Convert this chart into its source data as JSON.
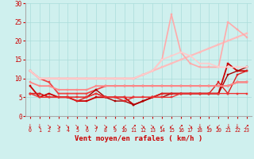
{
  "xlabel": "Vent moyen/en rafales ( km/h )",
  "xlim": [
    -0.5,
    23.5
  ],
  "ylim": [
    0,
    30
  ],
  "yticks": [
    0,
    5,
    10,
    15,
    20,
    25,
    30
  ],
  "xticks": [
    0,
    1,
    2,
    3,
    4,
    5,
    6,
    7,
    8,
    9,
    10,
    11,
    12,
    13,
    14,
    15,
    16,
    17,
    18,
    19,
    20,
    21,
    22,
    23
  ],
  "background_color": "#cff0ee",
  "grid_color": "#aaddda",
  "lines": [
    {
      "comment": "dark red - dips low around 11-12, rises sharply at 21",
      "x": [
        0,
        1,
        2,
        3,
        4,
        5,
        6,
        7,
        8,
        9,
        10,
        11,
        12,
        13,
        14,
        15,
        16,
        17,
        18,
        19,
        20,
        21,
        22,
        23
      ],
      "y": [
        8,
        5,
        6,
        5,
        5,
        4,
        4,
        5,
        5,
        5,
        5,
        3,
        4,
        5,
        6,
        6,
        6,
        6,
        6,
        6,
        6,
        14,
        12,
        12
      ],
      "color": "#cc0000",
      "lw": 1.3,
      "marker": "s",
      "ms": 2.0
    },
    {
      "comment": "medium red - starts ~12, drops to 6, stays ~6-8",
      "x": [
        0,
        1,
        2,
        3,
        4,
        5,
        6,
        7,
        8,
        9,
        10,
        11,
        12,
        13,
        14,
        15,
        16,
        17,
        18,
        19,
        20,
        21,
        22,
        23
      ],
      "y": [
        12,
        10,
        9,
        6,
        6,
        6,
        6,
        7,
        8,
        8,
        8,
        8,
        8,
        8,
        8,
        8,
        8,
        8,
        8,
        8,
        8,
        8,
        9,
        9
      ],
      "color": "#ee4444",
      "lw": 1.3,
      "marker": "s",
      "ms": 2.0
    },
    {
      "comment": "dark red thin - starts 6, dips to 3-4, rises at end",
      "x": [
        0,
        1,
        2,
        3,
        4,
        5,
        6,
        7,
        8,
        9,
        10,
        11,
        12,
        13,
        14,
        15,
        16,
        17,
        18,
        19,
        20,
        21,
        22,
        23
      ],
      "y": [
        6,
        6,
        5,
        5,
        5,
        5,
        5,
        7,
        5,
        4,
        4,
        3,
        4,
        5,
        5,
        6,
        6,
        6,
        6,
        6,
        6,
        11,
        12,
        13
      ],
      "color": "#aa0000",
      "lw": 1.0,
      "marker": "s",
      "ms": 1.8
    },
    {
      "comment": "medium dark red - flat ~5-6",
      "x": [
        0,
        1,
        2,
        3,
        4,
        5,
        6,
        7,
        8,
        9,
        10,
        11,
        12,
        13,
        14,
        15,
        16,
        17,
        18,
        19,
        20,
        21,
        22,
        23
      ],
      "y": [
        6,
        6,
        5,
        5,
        5,
        4,
        5,
        6,
        5,
        5,
        4,
        5,
        5,
        5,
        6,
        6,
        6,
        6,
        6,
        6,
        9,
        6,
        11,
        12
      ],
      "color": "#dd2222",
      "lw": 1.0,
      "marker": "s",
      "ms": 1.8
    },
    {
      "comment": "red flat ~5-6",
      "x": [
        0,
        1,
        2,
        3,
        4,
        5,
        6,
        7,
        8,
        9,
        10,
        11,
        12,
        13,
        14,
        15,
        16,
        17,
        18,
        19,
        20,
        21,
        22,
        23
      ],
      "y": [
        6,
        5,
        5,
        5,
        5,
        5,
        5,
        6,
        5,
        5,
        5,
        5,
        5,
        5,
        5,
        5,
        6,
        6,
        6,
        6,
        6,
        6,
        6,
        6
      ],
      "color": "#ee3333",
      "lw": 1.0,
      "marker": "s",
      "ms": 1.8
    },
    {
      "comment": "salmon - starts 9, flat ~8, slight rise",
      "x": [
        0,
        1,
        2,
        3,
        4,
        5,
        6,
        7,
        8,
        9,
        10,
        11,
        12,
        13,
        14,
        15,
        16,
        17,
        18,
        19,
        20,
        21,
        22,
        23
      ],
      "y": [
        9,
        8,
        8,
        7,
        7,
        7,
        7,
        8,
        8,
        8,
        8,
        8,
        8,
        8,
        8,
        8,
        8,
        8,
        8,
        8,
        8,
        8,
        9,
        9
      ],
      "color": "#ff8888",
      "lw": 1.3,
      "marker": "s",
      "ms": 2.0
    },
    {
      "comment": "light salmon - linear rise 12 to 21",
      "x": [
        0,
        1,
        2,
        3,
        4,
        5,
        6,
        7,
        8,
        9,
        10,
        11,
        12,
        13,
        14,
        15,
        16,
        17,
        18,
        19,
        20,
        21,
        22,
        23
      ],
      "y": [
        12,
        10,
        10,
        10,
        10,
        10,
        10,
        10,
        10,
        10,
        10,
        10,
        11,
        12,
        13,
        14,
        15,
        16,
        17,
        18,
        19,
        20,
        21,
        22
      ],
      "color": "#ffbbbb",
      "lw": 1.5,
      "marker": "s",
      "ms": 2.0
    },
    {
      "comment": "light pink - spike at 15=27, then 21=25",
      "x": [
        0,
        1,
        2,
        3,
        4,
        5,
        6,
        7,
        8,
        9,
        10,
        11,
        12,
        13,
        14,
        15,
        16,
        17,
        18,
        19,
        20,
        21,
        22,
        23
      ],
      "y": [
        12,
        10,
        10,
        10,
        10,
        10,
        10,
        10,
        10,
        10,
        10,
        10,
        11,
        12,
        15,
        27,
        17,
        14,
        13,
        13,
        13,
        25,
        23,
        21
      ],
      "color": "#ffaaaa",
      "lw": 1.2,
      "marker": "s",
      "ms": 2.0
    },
    {
      "comment": "pale pink - moderate rise, peak ~15 at x=16",
      "x": [
        0,
        1,
        2,
        3,
        4,
        5,
        6,
        7,
        8,
        9,
        10,
        11,
        12,
        13,
        14,
        15,
        16,
        17,
        18,
        19,
        20,
        21,
        22,
        23
      ],
      "y": [
        12,
        10,
        10,
        10,
        10,
        10,
        10,
        10,
        10,
        10,
        10,
        10,
        11,
        12,
        15,
        16,
        17,
        16,
        14,
        14,
        13,
        13,
        13,
        13
      ],
      "color": "#ffcccc",
      "lw": 1.2,
      "marker": "s",
      "ms": 2.0
    }
  ],
  "wind_arrows": [
    "↓",
    "↓",
    "↘",
    "↘",
    "↘",
    "↘",
    "↘",
    "↘",
    "↘",
    "↙",
    "↙",
    "↗",
    "↘",
    "↘",
    "↙",
    "↙",
    "↗",
    "↘",
    "↓",
    "↙",
    "↙",
    "↓",
    "↓",
    "↗"
  ]
}
